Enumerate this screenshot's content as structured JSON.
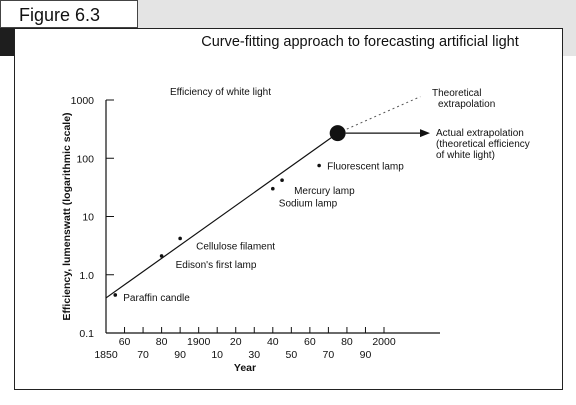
{
  "figure_label": "Figure 6.3",
  "chart_data": {
    "type": "line",
    "title": "Curve-fitting approach to forecasting artificial light",
    "subtitle": "Efficiency of white light",
    "xlabel": "Year",
    "ylabel": "Efficiency, lumenswatt (logarithmic scale)",
    "y_scale": "log",
    "ylim": [
      0.1,
      1000
    ],
    "xlim": [
      1850,
      2000
    ],
    "y_ticks": [
      "1000",
      "100",
      "10",
      "1.0",
      "0.1"
    ],
    "x_ticks_upper": [
      "60",
      "80",
      "1900",
      "20",
      "40",
      "60",
      "80",
      "2000"
    ],
    "x_ticks_lower": [
      "1850",
      "70",
      "90",
      "10",
      "30",
      "50",
      "70",
      "90"
    ],
    "points": [
      {
        "label": "Paraffin candle",
        "x": 1855,
        "y": 0.45
      },
      {
        "label": "Edison's first lamp",
        "x": 1880,
        "y": 2.1
      },
      {
        "label": "Cellulose filament",
        "x": 1890,
        "y": 4.2
      },
      {
        "label": "Sodium lamp",
        "x": 1940,
        "y": 30
      },
      {
        "label": "Mercury lamp",
        "x": 1945,
        "y": 42
      },
      {
        "label": "Fluorescent lamp",
        "x": 1965,
        "y": 75
      }
    ],
    "trend_line": {
      "start": {
        "x": 1850,
        "y": 0.4
      },
      "end": {
        "x": 1975,
        "y": 270
      }
    },
    "projection_point": {
      "x": 1975,
      "y": 270
    },
    "theoretical_extrapolation": {
      "label": "Theoretical extrapolation",
      "end": {
        "x": 1998,
        "y": 900
      },
      "style": "dotted"
    },
    "actual_extrapolation": {
      "label": "Actual extrapolation (theoretical efficiency of white light)",
      "arrow_to_x": 2015
    },
    "grid": false,
    "legend": "none"
  }
}
